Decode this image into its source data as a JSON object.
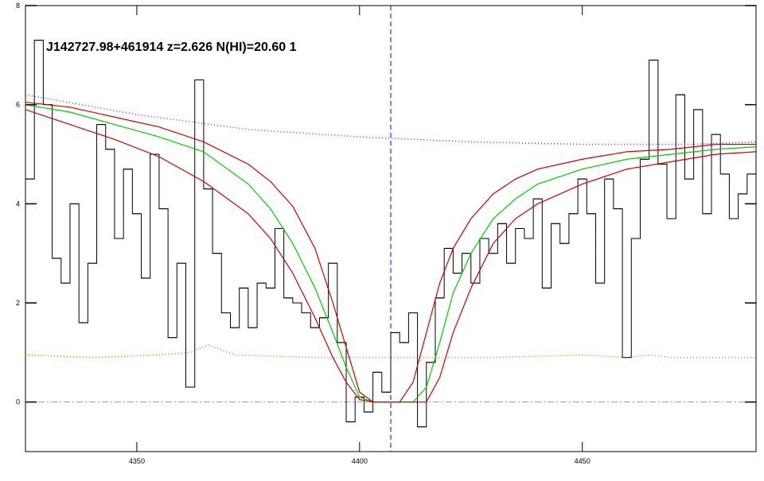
{
  "chart_data": {
    "type": "line",
    "annotation": "J142727.98+461914 z=2.626 N(HI)=20.60 1",
    "xlim": [
      4325,
      4489
    ],
    "ylim": [
      -1,
      8
    ],
    "xticks": [
      4350,
      4400,
      4450
    ],
    "yticks": [
      0,
      2,
      4,
      6,
      8
    ],
    "zero_line": 0,
    "marker_x": 4407,
    "series": [
      {
        "style": "step",
        "color": "#000000",
        "x": [
          4326,
          4328,
          4330,
          4332,
          4334,
          4336,
          4338,
          4340,
          4342,
          4344,
          4346,
          4348,
          4350,
          4352,
          4354,
          4356,
          4358,
          4360,
          4362,
          4364,
          4366,
          4368,
          4370,
          4372,
          4374,
          4376,
          4378,
          4380,
          4382,
          4384,
          4386,
          4388,
          4390,
          4392,
          4394,
          4396,
          4398,
          4400,
          4402,
          4404,
          4406,
          4408,
          4410,
          4412,
          4414,
          4416,
          4418,
          4420,
          4422,
          4424,
          4426,
          4428,
          4430,
          4432,
          4434,
          4436,
          4438,
          4440,
          4442,
          4444,
          4446,
          4448,
          4450,
          4452,
          4454,
          4456,
          4458,
          4460,
          4462,
          4464,
          4466,
          4468,
          4470,
          4472,
          4474,
          4476,
          4478,
          4480,
          4482,
          4484,
          4486,
          4488
        ],
        "values": [
          4.5,
          7.3,
          6.0,
          2.9,
          2.4,
          4.0,
          1.6,
          2.8,
          5.6,
          5.1,
          3.3,
          4.7,
          3.8,
          2.5,
          5.0,
          3.9,
          1.3,
          2.8,
          0.3,
          6.5,
          4.3,
          3.0,
          1.8,
          1.5,
          2.3,
          1.5,
          2.4,
          2.3,
          3.5,
          2.1,
          2.0,
          1.8,
          1.5,
          1.7,
          2.8,
          1.2,
          -0.4,
          0.1,
          -0.2,
          0.6,
          0.2,
          1.4,
          1.2,
          1.8,
          -0.5,
          0.8,
          2.1,
          3.1,
          2.6,
          3.0,
          2.4,
          3.3,
          3.0,
          3.6,
          2.8,
          3.5,
          3.3,
          4.1,
          2.3,
          3.6,
          3.2,
          3.8,
          4.5,
          3.8,
          2.4,
          4.5,
          3.9,
          0.9,
          3.3,
          4.9,
          6.9,
          4.8,
          3.7,
          6.2,
          4.5,
          5.9,
          3.8,
          5.4,
          4.6,
          3.7,
          4.2,
          4.6
        ]
      },
      {
        "style": "dotted",
        "color": "#e07020",
        "x": [
          4325,
          4340,
          4355,
          4362,
          4366,
          4372,
          4390,
          4410,
          4430,
          4450,
          4460,
          4465,
          4470,
          4489
        ],
        "values": [
          0.95,
          0.9,
          0.95,
          1.0,
          1.15,
          0.95,
          0.9,
          0.9,
          0.9,
          0.95,
          0.9,
          0.95,
          0.9,
          0.9
        ]
      },
      {
        "style": "dotted",
        "color": "#7a30e0",
        "x": [
          4325,
          4350,
          4375,
          4400,
          4425,
          4450,
          4475,
          4489
        ],
        "values": [
          6.2,
          5.8,
          5.5,
          5.35,
          5.25,
          5.2,
          5.2,
          5.25
        ]
      },
      {
        "style": "solid",
        "color": "#00cc00",
        "x": [
          4325,
          4335,
          4345,
          4355,
          4365,
          4375,
          4380,
          4385,
          4390,
          4394,
          4397,
          4400,
          4403,
          4406,
          4409,
          4412,
          4415,
          4418,
          4421,
          4425,
          4430,
          4435,
          4440,
          4450,
          4460,
          4470,
          4480,
          4489
        ],
        "values": [
          6.0,
          5.85,
          5.6,
          5.35,
          5.05,
          4.4,
          3.9,
          3.2,
          2.3,
          1.4,
          0.7,
          0.1,
          0,
          0,
          0,
          0,
          0.3,
          1.2,
          2.2,
          3.0,
          3.7,
          4.1,
          4.4,
          4.7,
          4.9,
          5.0,
          5.1,
          5.15
        ]
      },
      {
        "style": "solid",
        "color": "#cc0000",
        "x": [
          4325,
          4335,
          4345,
          4355,
          4365,
          4375,
          4380,
          4385,
          4390,
          4394,
          4397,
          4400,
          4403,
          4406,
          4409,
          4412,
          4415,
          4418,
          4421,
          4425,
          4430,
          4435,
          4440,
          4450,
          4460,
          4470,
          4480,
          4489
        ],
        "values": [
          6.05,
          5.95,
          5.75,
          5.55,
          5.25,
          4.8,
          4.45,
          3.95,
          3.1,
          2.0,
          1.1,
          0.2,
          0,
          0,
          0,
          0.4,
          1.4,
          2.4,
          3.1,
          3.7,
          4.2,
          4.5,
          4.7,
          4.9,
          5.05,
          5.1,
          5.2,
          5.2
        ]
      },
      {
        "style": "solid",
        "color": "#cc0000",
        "x": [
          4325,
          4335,
          4345,
          4355,
          4365,
          4375,
          4380,
          4385,
          4390,
          4394,
          4397,
          4400,
          4403,
          4406,
          4409,
          4412,
          4415,
          4418,
          4421,
          4425,
          4430,
          4435,
          4440,
          4450,
          4460,
          4470,
          4480,
          4489
        ],
        "values": [
          5.9,
          5.6,
          5.3,
          4.95,
          4.45,
          3.8,
          3.3,
          2.6,
          1.7,
          0.9,
          0.4,
          0.05,
          0,
          0,
          0,
          0,
          0,
          0.5,
          1.4,
          2.3,
          3.2,
          3.7,
          4.0,
          4.4,
          4.7,
          4.85,
          5.0,
          5.05
        ]
      }
    ]
  }
}
